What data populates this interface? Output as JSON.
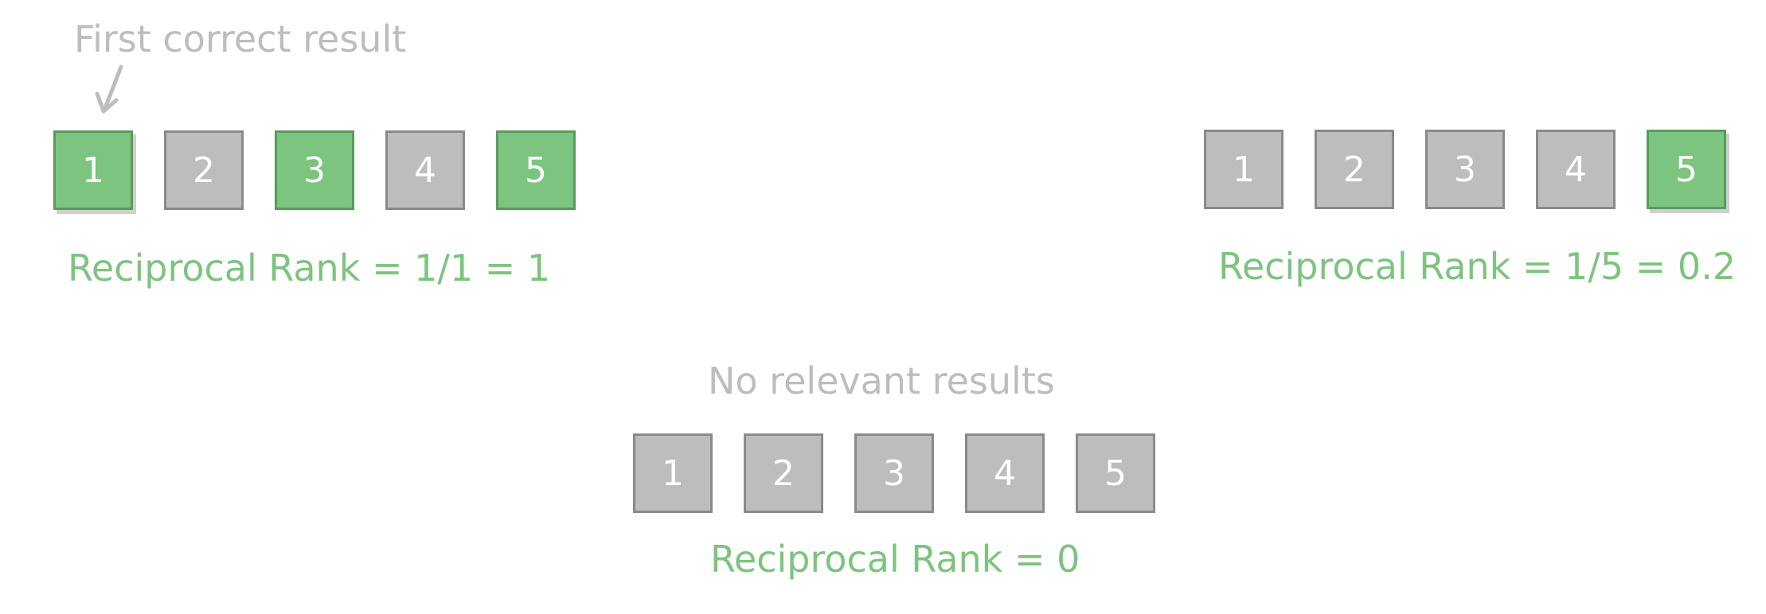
{
  "colors": {
    "relevant": "#7cc47f",
    "irrelevant": "#bdbdbd",
    "caption_text": "#bdbdbd",
    "result_text": "#7cc47f"
  },
  "examples": [
    {
      "caption": "First correct result",
      "results": [
        {
          "label": "1",
          "relevant": true
        },
        {
          "label": "2",
          "relevant": false
        },
        {
          "label": "3",
          "relevant": true
        },
        {
          "label": "4",
          "relevant": false
        },
        {
          "label": "5",
          "relevant": true
        }
      ],
      "reciprocal_rank_text": "Reciprocal Rank = 1/1 = 1"
    },
    {
      "caption": "",
      "results": [
        {
          "label": "1",
          "relevant": false
        },
        {
          "label": "2",
          "relevant": false
        },
        {
          "label": "3",
          "relevant": false
        },
        {
          "label": "4",
          "relevant": false
        },
        {
          "label": "5",
          "relevant": true
        }
      ],
      "reciprocal_rank_text": "Reciprocal Rank = 1/5 = 0.2"
    },
    {
      "caption": "No relevant results",
      "results": [
        {
          "label": "1",
          "relevant": false
        },
        {
          "label": "2",
          "relevant": false
        },
        {
          "label": "3",
          "relevant": false
        },
        {
          "label": "4",
          "relevant": false
        },
        {
          "label": "5",
          "relevant": false
        }
      ],
      "reciprocal_rank_text": "Reciprocal Rank = 0"
    }
  ]
}
